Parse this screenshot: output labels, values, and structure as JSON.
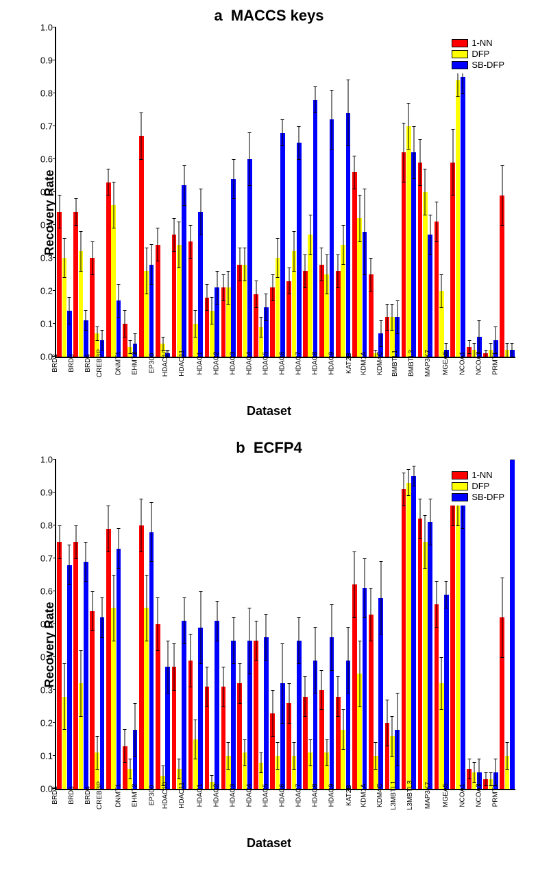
{
  "colors": {
    "series1": "#ff0000",
    "series2": "#ffff00",
    "series3": "#0000ff",
    "background": "#ffffff",
    "axis": "#000000",
    "error": "#000000"
  },
  "legend": {
    "items": [
      {
        "label": "1-NN",
        "color": "#ff0000"
      },
      {
        "label": "DFP",
        "color": "#ffff00"
      },
      {
        "label": "SB-DFP",
        "color": "#0000ff"
      }
    ],
    "fontsize": 13
  },
  "ylabel": "Recovery Rate",
  "xlabel": "Dataset",
  "ylim": [
    0,
    1.0
  ],
  "ytick_step": 0.1,
  "title_fontsize": 22,
  "label_fontsize": 18,
  "tick_fontsize": 13,
  "xtick_fontsize": 10,
  "panels": [
    {
      "letter": "a",
      "title": "MACCS keys",
      "type": "grouped-bar",
      "categories": [
        "BRD2",
        "BRD3",
        "BRD4",
        "CREBBP",
        "DNMT1",
        "EHMT2",
        "EP300",
        "HDAC10",
        "HDAC11",
        "HDAC1",
        "HDAC2",
        "HDAC3",
        "HDAC4",
        "HDAC5",
        "HDAC6",
        "HDAC7",
        "HDAC8",
        "HDAC9",
        "KAT2B",
        "KDM1A",
        "KDM4C",
        "BMBTL1",
        "BMBTL3",
        "MAP3K7",
        "MGEA5",
        "NCOA1",
        "NCOA3",
        "PRMT1"
      ],
      "series": [
        {
          "name": "1-NN",
          "color": "#ff0000",
          "values": [
            0.44,
            0.44,
            0.3,
            0.53,
            0.1,
            0.67,
            0.34,
            0.37,
            0.35,
            0.18,
            0.21,
            0.28,
            0.19,
            0.21,
            0.23,
            0.26,
            0.28,
            0.26,
            0.56,
            0.25,
            0.12,
            0.62,
            0.59,
            0.41,
            0.59,
            0.03,
            0.01,
            0.49
          ],
          "err": [
            0.05,
            0.04,
            0.05,
            0.04,
            0.04,
            0.07,
            0.05,
            0.05,
            0.05,
            0.04,
            0.04,
            0.05,
            0.04,
            0.04,
            0.04,
            0.05,
            0.05,
            0.05,
            0.05,
            0.05,
            0.04,
            0.09,
            0.07,
            0.06,
            0.1,
            0.02,
            0.01,
            0.09
          ]
        },
        {
          "name": "DFP",
          "color": "#ffff00",
          "values": [
            0.3,
            0.32,
            0.07,
            0.46,
            0.03,
            0.26,
            0.04,
            0.34,
            0.1,
            0.14,
            0.21,
            0.28,
            0.09,
            0.3,
            0.32,
            0.37,
            0.25,
            0.34,
            0.42,
            0.01,
            0.12,
            0.7,
            0.5,
            0.2,
            0.84,
            0.02,
            0.02,
            0.02
          ],
          "err": [
            0.06,
            0.06,
            0.02,
            0.07,
            0.02,
            0.07,
            0.02,
            0.07,
            0.04,
            0.04,
            0.05,
            0.05,
            0.03,
            0.06,
            0.06,
            0.06,
            0.06,
            0.06,
            0.07,
            0.01,
            0.04,
            0.07,
            0.07,
            0.05,
            0.05,
            0.02,
            0.02,
            0.02
          ]
        },
        {
          "name": "SB-DFP",
          "color": "#0000ff",
          "values": [
            0.14,
            0.11,
            0.05,
            0.17,
            0.04,
            0.28,
            0.01,
            0.52,
            0.44,
            0.21,
            0.54,
            0.6,
            0.15,
            0.68,
            0.65,
            0.78,
            0.72,
            0.74,
            0.38,
            0.07,
            0.12,
            0.62,
            0.37,
            0.02,
            0.85,
            0.06,
            0.05,
            0.02
          ],
          "err": [
            0.04,
            0.03,
            0.03,
            0.05,
            0.03,
            0.06,
            0.01,
            0.06,
            0.07,
            0.05,
            0.06,
            0.08,
            0.04,
            0.04,
            0.05,
            0.04,
            0.09,
            0.1,
            0.13,
            0.04,
            0.05,
            0.08,
            0.06,
            0.02,
            0.05,
            0.05,
            0.04,
            0.02
          ]
        }
      ]
    },
    {
      "letter": "b",
      "title": "ECFP4",
      "type": "grouped-bar",
      "categories": [
        "BRD2",
        "BRD3",
        "BRD4",
        "CREBBP",
        "DNMT1",
        "EHMT2",
        "EP300",
        "HDAC10",
        "HDAC11",
        "HDAC1",
        "HDAC2",
        "HDAC3",
        "HDAC4",
        "HDAC5",
        "HDAC6",
        "HDAC7",
        "HDAC8",
        "HDAC9",
        "KAT2B",
        "KDM1A",
        "KDM4C",
        "L3MBTL1",
        "L3MBTL3",
        "MAP3K7",
        "MGEA5",
        "NCOA1",
        "NCOA3",
        "PRMT1"
      ],
      "series": [
        {
          "name": "1-NN",
          "color": "#ff0000",
          "values": [
            0.75,
            0.75,
            0.54,
            0.79,
            0.13,
            0.8,
            0.5,
            0.37,
            0.39,
            0.31,
            0.31,
            0.32,
            0.45,
            0.23,
            0.26,
            0.28,
            0.3,
            0.28,
            0.62,
            0.53,
            0.2,
            0.91,
            0.82,
            0.56,
            0.86,
            0.06,
            0.03,
            0.52
          ],
          "err": [
            0.05,
            0.05,
            0.06,
            0.07,
            0.05,
            0.08,
            0.08,
            0.07,
            0.08,
            0.06,
            0.06,
            0.06,
            0.06,
            0.07,
            0.06,
            0.06,
            0.06,
            0.06,
            0.1,
            0.08,
            0.07,
            0.05,
            0.06,
            0.07,
            0.06,
            0.03,
            0.02,
            0.12
          ]
        },
        {
          "name": "DFP",
          "color": "#ffff00",
          "values": [
            0.28,
            0.32,
            0.11,
            0.55,
            0.06,
            0.55,
            0.04,
            0.06,
            0.15,
            0.02,
            0.1,
            0.11,
            0.08,
            0.1,
            0.1,
            0.11,
            0.11,
            0.18,
            0.35,
            0.1,
            0.16,
            0.93,
            0.75,
            0.32,
            0.87,
            0.05,
            0.03,
            0.1
          ],
          "err": [
            0.1,
            0.1,
            0.05,
            0.1,
            0.03,
            0.1,
            0.03,
            0.03,
            0.06,
            0.02,
            0.04,
            0.04,
            0.03,
            0.04,
            0.04,
            0.04,
            0.04,
            0.06,
            0.1,
            0.04,
            0.06,
            0.04,
            0.08,
            0.08,
            0.07,
            0.03,
            0.02,
            0.04
          ]
        },
        {
          "name": "SB-DFP",
          "color": "#0000ff",
          "values": [
            0.68,
            0.69,
            0.52,
            0.73,
            0.18,
            0.78,
            0.37,
            0.51,
            0.49,
            0.51,
            0.45,
            0.45,
            0.46,
            0.32,
            0.45,
            0.39,
            0.46,
            0.39,
            0.61,
            0.58,
            0.18,
            0.95,
            0.81,
            0.59,
            0.87,
            0.05,
            0.05,
            1.0
          ],
          "err": [
            0.06,
            0.06,
            0.06,
            0.06,
            0.08,
            0.09,
            0.08,
            0.07,
            0.11,
            0.06,
            0.07,
            0.1,
            0.07,
            0.12,
            0.07,
            0.1,
            0.1,
            0.1,
            0.09,
            0.11,
            0.11,
            0.03,
            0.07,
            0.04,
            0.08,
            0.04,
            0.04,
            0.0
          ]
        }
      ]
    }
  ]
}
